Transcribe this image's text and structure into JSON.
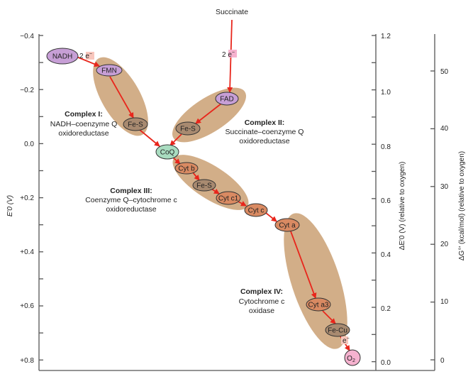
{
  "substrates": {
    "nadh": "NADH",
    "succinate": "Succinate",
    "oxygen": "O",
    "oxygen_sub": "2"
  },
  "electrons": {
    "two_e_1": "2 e",
    "two_e_2": "2 e",
    "one_e": "e",
    "sup": "−"
  },
  "carriers": {
    "fmn": "FMN",
    "fes1": "Fe-S",
    "fad": "FAD",
    "fes2": "Fe-S",
    "coq": "CoQ",
    "cytb": "Cyt b",
    "fes3": "Fe-S",
    "cytc1": "Cyt c1",
    "cytc": "Cyt c",
    "cyta": "Cyt a",
    "cyta3": "Cyt a3",
    "fecu": "Fe-Cu"
  },
  "complexes": [
    {
      "title": "Complex I:",
      "line1": "NADH–coenzyme Q",
      "line2": "oxidoreductase"
    },
    {
      "title": "Complex II:",
      "line1": "Succinate–coenzyme Q",
      "line2": "oxidoreductase"
    },
    {
      "title": "Complex III:",
      "line1": "Coenzyme Q–cytochrome c",
      "line2": "oxidoreductase"
    },
    {
      "title": "Complex IV:",
      "line1": "Cytochrome c",
      "line2": "oxidase"
    }
  ],
  "axes": {
    "left": {
      "label": "E′0 (V)",
      "ticks": [
        "−0.4",
        "−0.2",
        "0.0",
        "+0.2",
        "+0.4",
        "+0.6",
        "+0.8"
      ]
    },
    "middle": {
      "label": "ΔE′0 (V) (relative to oxygen)",
      "ticks": [
        "1.2",
        "1.0",
        "0.8",
        "0.6",
        "0.4",
        "0.2",
        "0.0"
      ]
    },
    "right": {
      "label": "ΔG°′ (kcal/mol) (relative to oxygen)",
      "ticks": [
        "50",
        "40",
        "30",
        "20",
        "10",
        "0"
      ]
    }
  },
  "colors": {
    "complex": "#d2ae88",
    "purple": "#c79fd6",
    "brown": "#a88a70",
    "cyt": "#d98a62",
    "green": "#a9dcc0",
    "pink": "#f6b2cf",
    "arrow": "#e8261c"
  }
}
